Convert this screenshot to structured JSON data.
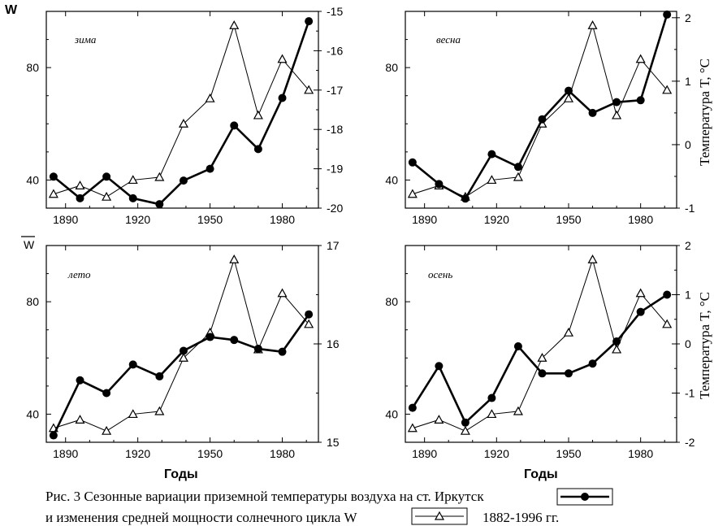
{
  "caption": {
    "line1": "Рис. 3 Сезонные вариации приземной температуры воздуха на ст. Иркутск",
    "line2": "и изменения средней мощности солнечного цикла W",
    "years": "1882-1996 гг."
  },
  "labels": {
    "w_top": "W",
    "w_bottom": "W",
    "xlabel": "Годы",
    "ylabel_right": "Температура T, °С"
  },
  "chart_data": [
    {
      "type": "line",
      "panel": "top-left",
      "season_label": "зима",
      "years": [
        1885,
        1896,
        1907,
        1918,
        1929,
        1939,
        1950,
        1960,
        1970,
        1980,
        1991
      ],
      "w_series": {
        "values": [
          35,
          38,
          34,
          40,
          41,
          60,
          69,
          95,
          63,
          83,
          72
        ]
      },
      "t_series": {
        "values": [
          -19.2,
          -19.75,
          -19.2,
          -19.75,
          -19.9,
          -19.3,
          -19.0,
          -17.9,
          -18.5,
          -17.2,
          -15.25
        ]
      },
      "w_ylim": [
        30,
        100
      ],
      "w_ticks": [
        40,
        80
      ],
      "t_ylim": [
        -20,
        -15
      ],
      "t_ticks": [
        -20,
        -19,
        -18,
        -17,
        -16,
        -15
      ],
      "xlim": [
        1882,
        1995
      ],
      "xticks": [
        1890,
        1920,
        1950,
        1980
      ]
    },
    {
      "type": "line",
      "panel": "top-right",
      "season_label": "весна",
      "years": [
        1885,
        1896,
        1907,
        1918,
        1929,
        1939,
        1950,
        1960,
        1970,
        1980,
        1991
      ],
      "w_series": {
        "values": [
          35,
          38,
          34,
          40,
          41,
          60,
          69,
          95,
          63,
          83,
          72
        ]
      },
      "t_series": {
        "values": [
          -0.28,
          -0.62,
          -0.85,
          -0.15,
          -0.35,
          0.4,
          0.85,
          0.5,
          0.67,
          0.7,
          2.05
        ]
      },
      "w_ylim": [
        30,
        100
      ],
      "w_ticks": [
        40,
        80
      ],
      "t_ylim": [
        -1,
        2.1
      ],
      "t_ticks": [
        -1,
        0,
        1,
        2
      ],
      "xlim": [
        1882,
        1995
      ],
      "xticks": [
        1890,
        1920,
        1950,
        1980
      ]
    },
    {
      "type": "line",
      "panel": "bottom-left",
      "season_label": "лето",
      "years": [
        1885,
        1896,
        1907,
        1918,
        1929,
        1939,
        1950,
        1960,
        1970,
        1980,
        1991
      ],
      "w_series": {
        "values": [
          35,
          38,
          34,
          40,
          41,
          60,
          69,
          95,
          63,
          83,
          72
        ]
      },
      "t_series": {
        "values": [
          15.07,
          15.63,
          15.5,
          15.79,
          15.67,
          15.93,
          16.07,
          16.04,
          15.95,
          15.92,
          16.3
        ]
      },
      "w_ylim": [
        30,
        100
      ],
      "w_ticks": [
        40,
        80
      ],
      "t_ylim": [
        15,
        17
      ],
      "t_ticks": [
        15,
        16,
        17
      ],
      "xlim": [
        1882,
        1995
      ],
      "xticks": [
        1890,
        1920,
        1950,
        1980
      ]
    },
    {
      "type": "line",
      "panel": "bottom-right",
      "season_label": "осень",
      "years": [
        1885,
        1896,
        1907,
        1918,
        1929,
        1939,
        1950,
        1960,
        1970,
        1980,
        1991
      ],
      "w_series": {
        "values": [
          35,
          38,
          34,
          40,
          41,
          60,
          69,
          95,
          63,
          83,
          72
        ]
      },
      "t_series": {
        "values": [
          -1.3,
          -0.45,
          -1.6,
          -1.1,
          -0.05,
          -0.6,
          -0.6,
          -0.4,
          0.05,
          0.65,
          1.0
        ]
      },
      "w_ylim": [
        30,
        100
      ],
      "w_ticks": [
        40,
        80
      ],
      "t_ylim": [
        -2,
        2
      ],
      "t_ticks": [
        -2,
        -1,
        0,
        1,
        2
      ],
      "xlim": [
        1882,
        1995
      ],
      "xticks": [
        1890,
        1920,
        1950,
        1980
      ]
    }
  ]
}
